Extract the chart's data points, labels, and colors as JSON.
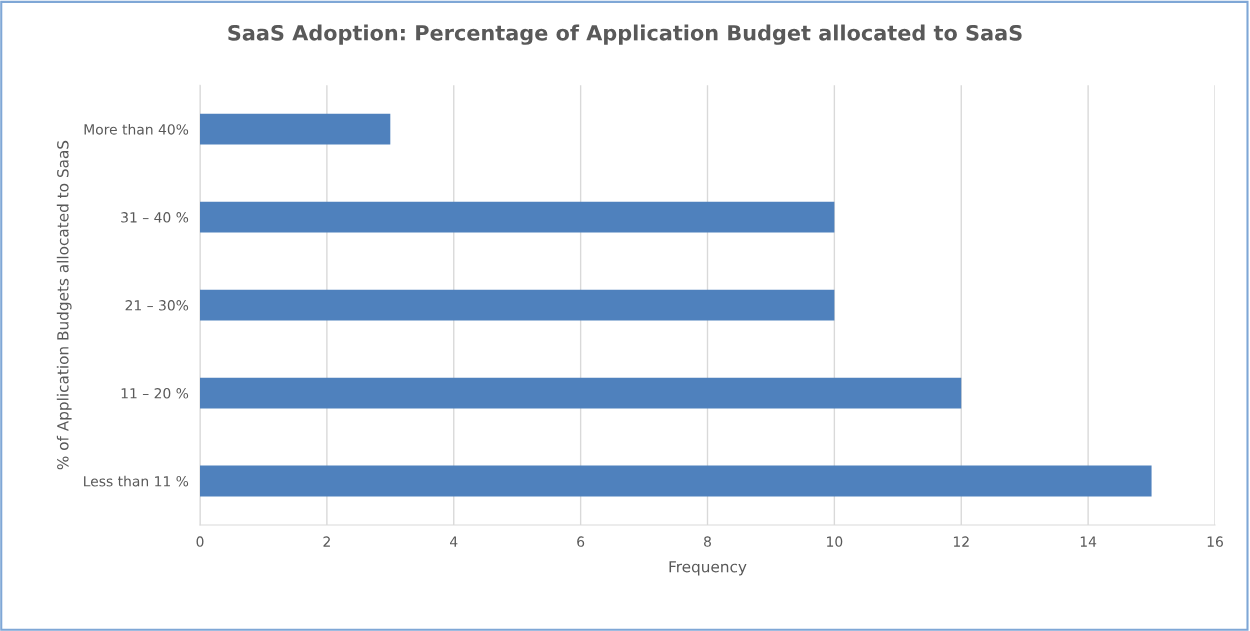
{
  "chart_data": {
    "type": "bar",
    "orientation": "horizontal",
    "title": "SaaS Adoption: Percentage of Application Budget allocated to SaaS",
    "xlabel": "Frequency",
    "ylabel": "% of Application Budgets allocated to SaaS",
    "categories": [
      "More than 40%",
      "31 – 40 %",
      "21 – 30%",
      "11 – 20 %",
      "Less than 11 %"
    ],
    "values": [
      3,
      10,
      10,
      12,
      15
    ],
    "color": "#4f81bd",
    "xlim": [
      0,
      16
    ],
    "xticks": [
      0,
      2,
      4,
      6,
      8,
      10,
      12,
      14,
      16
    ],
    "grid": "x",
    "legend": false
  }
}
